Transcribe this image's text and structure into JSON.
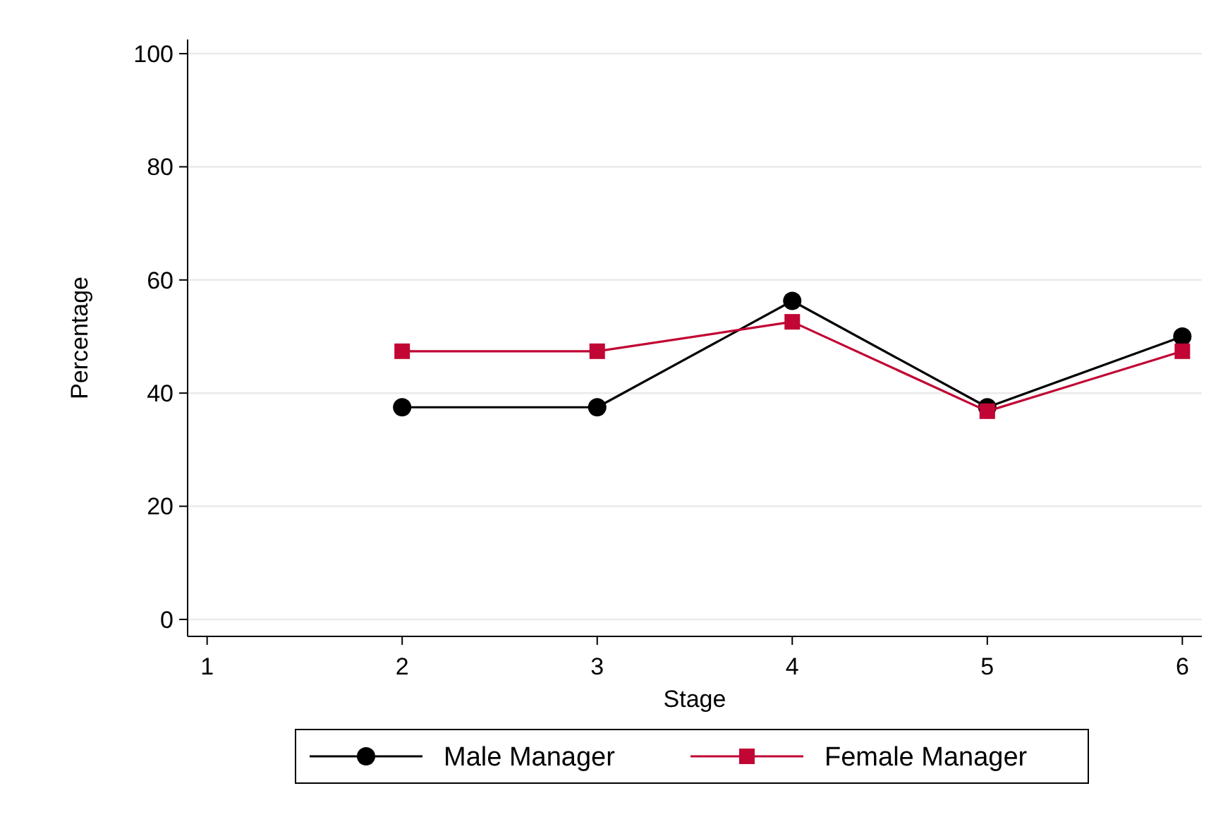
{
  "chart_data": {
    "type": "line",
    "xlabel": "Stage",
    "ylabel": "Percentage",
    "x": [
      2,
      3,
      4,
      5,
      6
    ],
    "series": [
      {
        "name": "Male Manager",
        "color": "#000000",
        "marker": "circle",
        "values": [
          37.5,
          37.5,
          56.3,
          37.5,
          50
        ]
      },
      {
        "name": "Female Manager",
        "color": "#c10534",
        "marker": "square",
        "values": [
          47.4,
          47.4,
          52.6,
          36.8,
          47.4
        ]
      }
    ],
    "xlim": [
      0.9,
      6.1
    ],
    "xticks": [
      1,
      2,
      3,
      4,
      5,
      6
    ],
    "ylim": [
      -3,
      102.5
    ],
    "yticks": [
      0,
      20,
      40,
      60,
      80,
      100
    ],
    "grid": "y",
    "legend": "bottom"
  }
}
